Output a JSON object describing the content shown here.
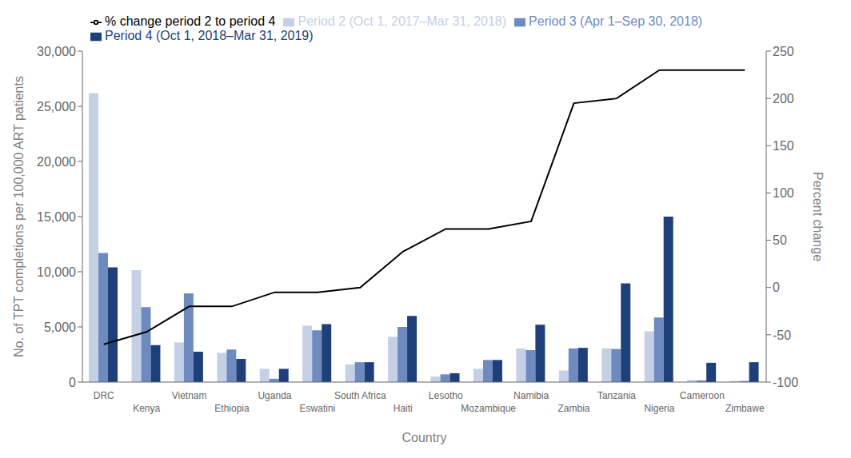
{
  "chart_data": {
    "type": "bar",
    "xlabel": "Country",
    "ylabel": "No. of TPT completions per 100,000 ART patients",
    "y2label": "Percent change",
    "categories": [
      "DRC",
      "Kenya",
      "Vietnam",
      "Ethiopia",
      "Uganda",
      "Eswatini",
      "South Africa",
      "Haiti",
      "Lesotho",
      "Mozambique",
      "Namibia",
      "Zambia",
      "Tanzania",
      "Nigeria",
      "Cameroon",
      "Zimbawe"
    ],
    "series": [
      {
        "name": "Period 2 (Oct 1, 2017–Mar 31, 2018)",
        "type": "bar",
        "color": "#c5d0e6",
        "values": [
          26200,
          10150,
          3600,
          2650,
          1200,
          5100,
          1600,
          4100,
          500,
          1200,
          3050,
          1050,
          3050,
          4600,
          200,
          100
        ]
      },
      {
        "name": "Period 3 (Apr 1–Sep 30, 2018)",
        "type": "bar",
        "color": "#6e8bbf",
        "values": [
          11700,
          6800,
          8050,
          2950,
          300,
          4700,
          1800,
          5000,
          700,
          2000,
          2900,
          3050,
          3000,
          5850,
          150,
          100
        ]
      },
      {
        "name": "Period 4 (Oct 1, 2018–Mar 31, 2019)",
        "type": "bar",
        "color": "#1e3f7a",
        "values": [
          10400,
          3350,
          2750,
          2100,
          1200,
          5250,
          1800,
          6000,
          800,
          2000,
          5200,
          3100,
          8950,
          15000,
          1750,
          1800
        ]
      },
      {
        "name": "% change period 2 to period 4",
        "type": "line",
        "color": "#000000",
        "axis": "y2",
        "values": [
          -60,
          -47,
          -20,
          -20,
          -5,
          -5,
          0,
          38,
          62,
          62,
          70,
          195,
          200,
          230,
          230,
          230
        ]
      }
    ],
    "ylim": [
      0,
      30000
    ],
    "yticks": [
      0,
      {
        "value": 5000,
        "label": "5,000"
      },
      {
        "value": 10000,
        "label": "10,000"
      },
      {
        "value": 15000,
        "label": "15,000"
      },
      {
        "value": 20000,
        "label": "20,000"
      },
      {
        "value": 25000,
        "label": "25,000"
      },
      {
        "value": 30000,
        "label": "30,000"
      }
    ],
    "y2lim": [
      -100,
      250
    ],
    "y2ticks": [
      -100,
      -50,
      0,
      50,
      100,
      150,
      200,
      250
    ],
    "grid": false,
    "legend": "upper left"
  }
}
